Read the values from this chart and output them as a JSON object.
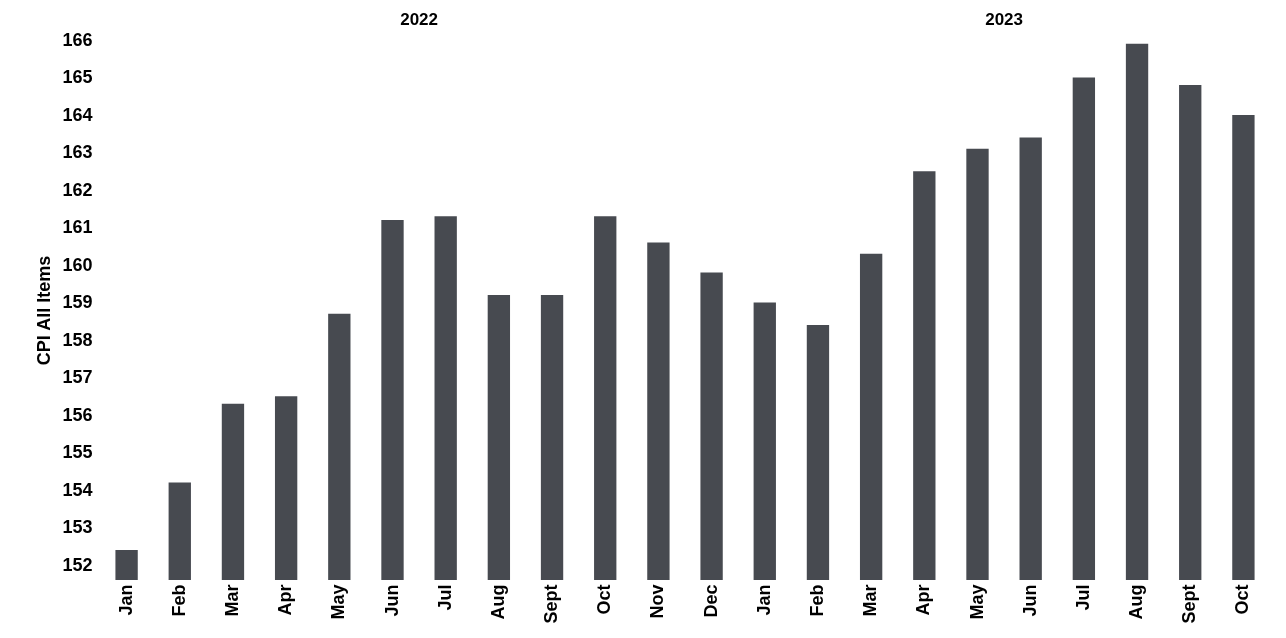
{
  "chart_data": {
    "type": "bar",
    "ylabel": "CPI All Items",
    "annotations": [
      "2022",
      "2023"
    ],
    "categories": [
      "Jan",
      "Feb",
      "Mar",
      "Apr",
      "May",
      "Jun",
      "Jul",
      "Aug",
      "Sept",
      "Oct",
      "Nov",
      "Dec",
      "Jan",
      "Feb",
      "Mar",
      "Apr",
      "May",
      "Jun",
      "Jul",
      "Aug",
      "Sept",
      "Oct"
    ],
    "values": [
      152.4,
      154.2,
      156.3,
      156.5,
      158.7,
      161.2,
      161.3,
      159.2,
      159.2,
      161.3,
      160.6,
      159.8,
      159.0,
      158.4,
      160.3,
      162.5,
      163.1,
      163.4,
      165.0,
      165.9,
      164.8,
      164.0
    ],
    "color": "#474a50",
    "ylim": [
      151.6,
      166
    ],
    "yticks": [
      152,
      153,
      154,
      155,
      156,
      157,
      158,
      159,
      160,
      161,
      162,
      163,
      164,
      165,
      166
    ],
    "grid": false
  }
}
